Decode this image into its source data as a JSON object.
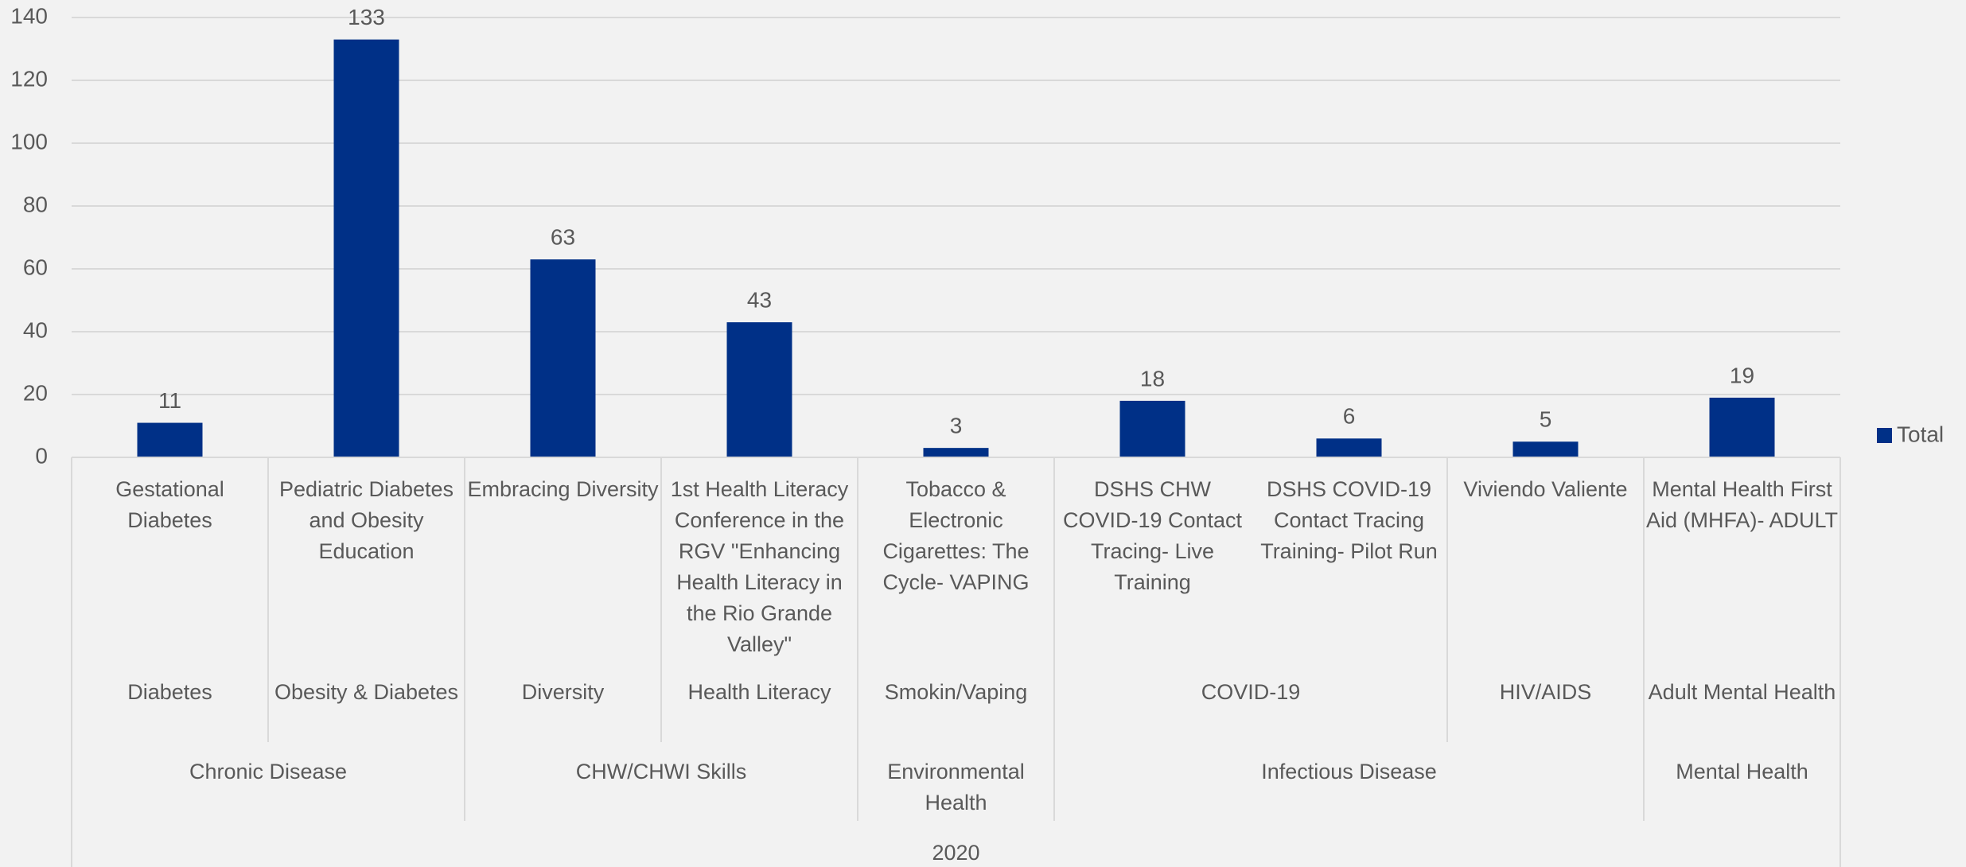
{
  "chart_data": {
    "type": "bar",
    "categories": [
      "Gestational Diabetes",
      "Pediatric Diabetes and Obesity Education",
      "Embracing Diversity",
      "1st Health Literacy Conference in the RGV \"Enhancing Health Literacy in the Rio Grande Valley\"",
      "Tobacco & Electronic Cigarettes: The Cycle- VAPING",
      "DSHS CHW COVID-19 Contact Tracing- Live Training",
      "DSHS COVID-19 Contact Tracing Training- Pilot Run",
      "Viviendo Valiente",
      "Mental Health First Aid (MHFA)- ADULT"
    ],
    "category_groups": [
      [
        "Diabetes",
        "Obesity & Diabetes",
        "Diversity",
        "Health Literacy",
        "Smokin/Vaping",
        "COVID-19",
        null,
        "HIV/AIDS",
        "Adult Mental Health"
      ],
      [
        "Chronic Disease",
        null,
        "CHW/CHWI Skills",
        null,
        "Environmental Health",
        "Infectious Disease",
        null,
        null,
        "Mental Health"
      ],
      [
        "2020",
        null,
        null,
        null,
        null,
        null,
        null,
        null,
        null
      ]
    ],
    "series": [
      {
        "name": "Total",
        "color": "#003087",
        "values": [
          11,
          133,
          63,
          43,
          3,
          18,
          6,
          5,
          19
        ]
      }
    ],
    "ylim": [
      0,
      140
    ],
    "yticks": [
      0,
      20,
      40,
      60,
      80,
      100,
      120,
      140
    ],
    "grid": true,
    "legend": "right"
  }
}
